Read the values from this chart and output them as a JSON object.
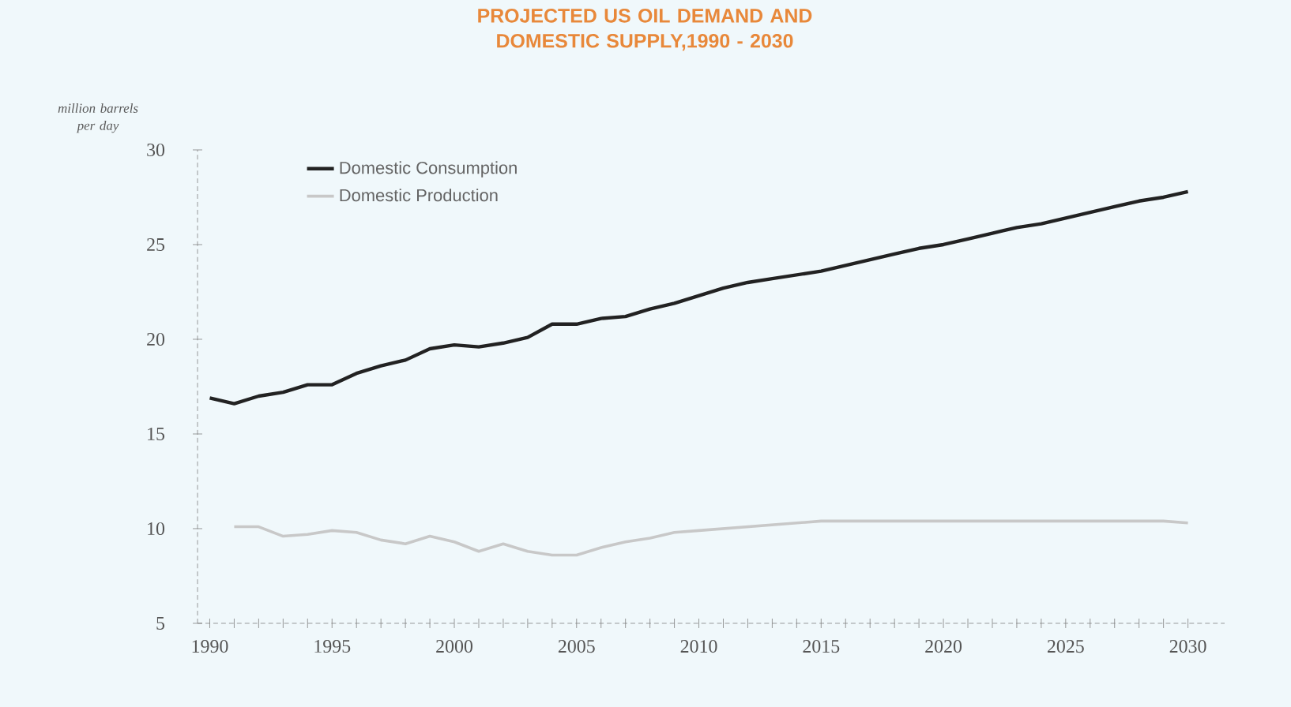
{
  "chart_data": {
    "type": "line",
    "title": "PROJECTED US OIL DEMAND AND DOMESTIC SUPPLY,1990 - 2030",
    "ylabel": "million barrels per day",
    "xlim": [
      1989.5,
      2031.5
    ],
    "ylim": [
      5,
      30
    ],
    "yticks": [
      5,
      10,
      15,
      20,
      25,
      30
    ],
    "xticks": [
      1990,
      {
        "value": 1991,
        "label": null
      },
      {
        "value": 1992,
        "label": null
      },
      {
        "value": 1993,
        "label": null
      },
      {
        "value": 1994,
        "label": null
      },
      1995,
      {
        "value": 1996,
        "label": null
      },
      {
        "value": 1997,
        "label": null
      },
      {
        "value": 1998,
        "label": null
      },
      {
        "value": 1999,
        "label": null
      },
      2000,
      {
        "value": 2001,
        "label": null
      },
      {
        "value": 2002,
        "label": null
      },
      {
        "value": 2003,
        "label": null
      },
      {
        "value": 2004,
        "label": null
      },
      2005,
      {
        "value": 2006,
        "label": null
      },
      {
        "value": 2007,
        "label": null
      },
      {
        "value": 2008,
        "label": null
      },
      {
        "value": 2009,
        "label": null
      },
      2010,
      {
        "value": 2011,
        "label": null
      },
      {
        "value": 2012,
        "label": null
      },
      {
        "value": 2013,
        "label": null
      },
      {
        "value": 2014,
        "label": null
      },
      2015,
      {
        "value": 2016,
        "label": null
      },
      {
        "value": 2017,
        "label": null
      },
      {
        "value": 2018,
        "label": null
      },
      {
        "value": 2019,
        "label": null
      },
      2020,
      {
        "value": 2021,
        "label": null
      },
      {
        "value": 2022,
        "label": null
      },
      {
        "value": 2023,
        "label": null
      },
      {
        "value": 2024,
        "label": null
      },
      2025,
      {
        "value": 2026,
        "label": null
      },
      {
        "value": 2027,
        "label": null
      },
      {
        "value": 2028,
        "label": null
      },
      {
        "value": 2029,
        "label": null
      },
      2030
    ],
    "grid": false,
    "legend": "top left",
    "series": [
      {
        "name": "Domestic Consumption",
        "color": "#222222",
        "x": [
          1990,
          1991,
          1992,
          1993,
          1994,
          1995,
          1996,
          1997,
          1998,
          1999,
          2000,
          2001,
          2002,
          2003,
          2004,
          2005,
          2006,
          2007,
          2008,
          2009,
          2010,
          2011,
          2012,
          2013,
          2014,
          2015,
          2016,
          2017,
          2018,
          2019,
          2020,
          2021,
          2022,
          2023,
          2024,
          2025,
          2026,
          2027,
          2028,
          2029,
          2030
        ],
        "values": [
          16.9,
          16.6,
          17.0,
          17.2,
          17.6,
          17.6,
          18.2,
          18.6,
          18.9,
          19.5,
          19.7,
          19.6,
          19.8,
          20.1,
          20.8,
          20.8,
          21.1,
          21.2,
          21.6,
          21.9,
          22.3,
          22.7,
          23.0,
          23.2,
          23.4,
          23.6,
          23.9,
          24.2,
          24.5,
          24.8,
          25.0,
          25.3,
          25.6,
          25.9,
          26.1,
          26.4,
          26.7,
          27.0,
          27.3,
          27.5,
          27.8
        ]
      },
      {
        "name": "Domestic Production",
        "color": "#c8c8c8",
        "x": [
          1991,
          1992,
          1993,
          1994,
          1995,
          1996,
          1997,
          1998,
          1999,
          2000,
          2001,
          2002,
          2003,
          2004,
          2005,
          2006,
          2007,
          2008,
          2009,
          2010,
          2011,
          2012,
          2013,
          2014,
          2015,
          2016,
          2017,
          2018,
          2019,
          2020,
          2021,
          2022,
          2023,
          2024,
          2025,
          2026,
          2027,
          2028,
          2029,
          2030
        ],
        "values": [
          10.1,
          10.1,
          9.6,
          9.7,
          9.9,
          9.8,
          9.4,
          9.2,
          9.6,
          9.3,
          8.8,
          9.2,
          8.8,
          8.6,
          8.6,
          9.0,
          9.3,
          9.5,
          9.8,
          9.9,
          10.0,
          10.1,
          10.2,
          10.3,
          10.4,
          10.4,
          10.4,
          10.4,
          10.4,
          10.4,
          10.4,
          10.4,
          10.4,
          10.4,
          10.4,
          10.4,
          10.4,
          10.4,
          10.4,
          10.3
        ]
      }
    ]
  }
}
